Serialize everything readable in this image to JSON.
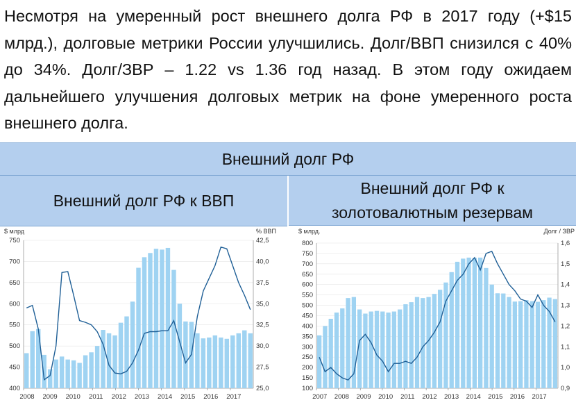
{
  "intro_text": "Несмотря на умеренный рост внешнего долга РФ в 2017 году (+$15 млрд.), долговые метрики России улучшились. Долг/ВВП снизился с 40% до 34%. Долг/ЗВР – 1.22 vs 1.36 год назад. В этом году ожидаем дальнейшего улучшения долговых метрик на фоне умеренного роста внешнего долга.",
  "banner_title": "Внешний долг РФ",
  "colors": {
    "bar": "#9fd3f2",
    "line": "#1f5f96",
    "header_bg": "#b4cfee",
    "axis": "#999999"
  },
  "chart_data": [
    {
      "type": "bar",
      "title": "Внешний долг РФ к ВВП",
      "left_axis_label": "$ млрд",
      "right_axis_label": "% ВВП",
      "ylim": [
        400,
        750
      ],
      "y2lim": [
        25,
        42.5
      ],
      "yticks": [
        "400",
        "450",
        "500",
        "550",
        "600",
        "650",
        "700",
        "750"
      ],
      "y2ticks": [
        "25,0",
        "27,5",
        "30,0",
        "32,5",
        "35,0",
        "37,5",
        "40,0",
        "42,5"
      ],
      "x_labels": [
        "2008",
        "2009",
        "2010",
        "2011",
        "2012",
        "2013",
        "2014",
        "2015",
        "2016",
        "2017"
      ],
      "series": [
        {
          "kind": "bar",
          "values": [
            483,
            535,
            540,
            479,
            445,
            468,
            475,
            468,
            466,
            460,
            478,
            485,
            500,
            538,
            530,
            525,
            555,
            570,
            605,
            685,
            710,
            720,
            730,
            728,
            732,
            680,
            600,
            558,
            557,
            530,
            518,
            520,
            525,
            520,
            517,
            525,
            530,
            537,
            530
          ]
        },
        {
          "kind": "line",
          "axis": "right",
          "values": [
            34.5,
            34.8,
            32.0,
            26.0,
            26.5,
            30.0,
            38.7,
            38.8,
            36.0,
            33.0,
            32.8,
            32.5,
            31.7,
            30.2,
            27.7,
            26.8,
            26.7,
            27.0,
            28.0,
            29.5,
            31.5,
            31.7,
            31.7,
            31.8,
            31.8,
            33.0,
            30.5,
            28.0,
            29.0,
            33.5,
            36.5,
            38.0,
            39.5,
            41.7,
            41.5,
            39.5,
            37.5,
            36.0,
            34.3
          ]
        }
      ]
    },
    {
      "type": "bar",
      "title": "Внешний долг РФ к золотовалютным резервам",
      "left_axis_label": "$ млрд.",
      "right_axis_label": "Долг / ЗВР",
      "ylim": [
        100,
        800
      ],
      "y2lim": [
        0.9,
        1.6
      ],
      "yticks": [
        "100",
        "150",
        "200",
        "250",
        "300",
        "350",
        "400",
        "450",
        "500",
        "550",
        "600",
        "650",
        "700",
        "750",
        "800"
      ],
      "y2ticks": [
        "0,9",
        "1,0",
        "1,1",
        "1,2",
        "1,3",
        "1,4",
        "1,5",
        "1,6"
      ],
      "x_labels": [
        "2007",
        "2008",
        "2009",
        "2010",
        "2011",
        "2012",
        "2013",
        "2014",
        "2015",
        "2016",
        "2017"
      ],
      "series": [
        {
          "kind": "bar",
          "values": [
            355,
            400,
            435,
            465,
            485,
            535,
            540,
            480,
            460,
            470,
            473,
            470,
            465,
            470,
            480,
            505,
            515,
            540,
            535,
            540,
            555,
            575,
            610,
            660,
            710,
            725,
            730,
            728,
            730,
            680,
            600,
            558,
            557,
            540,
            518,
            520,
            525,
            520,
            517,
            525,
            537,
            530
          ]
        },
        {
          "kind": "line",
          "axis": "right",
          "values": [
            1.05,
            0.98,
            1.0,
            0.97,
            0.95,
            0.94,
            0.97,
            1.13,
            1.16,
            1.12,
            1.06,
            1.03,
            0.98,
            1.02,
            1.02,
            1.03,
            1.02,
            1.05,
            1.1,
            1.13,
            1.17,
            1.22,
            1.32,
            1.37,
            1.42,
            1.45,
            1.5,
            1.53,
            1.47,
            1.55,
            1.56,
            1.5,
            1.45,
            1.4,
            1.37,
            1.33,
            1.32,
            1.29,
            1.35,
            1.3,
            1.27,
            1.22
          ]
        }
      ]
    }
  ]
}
